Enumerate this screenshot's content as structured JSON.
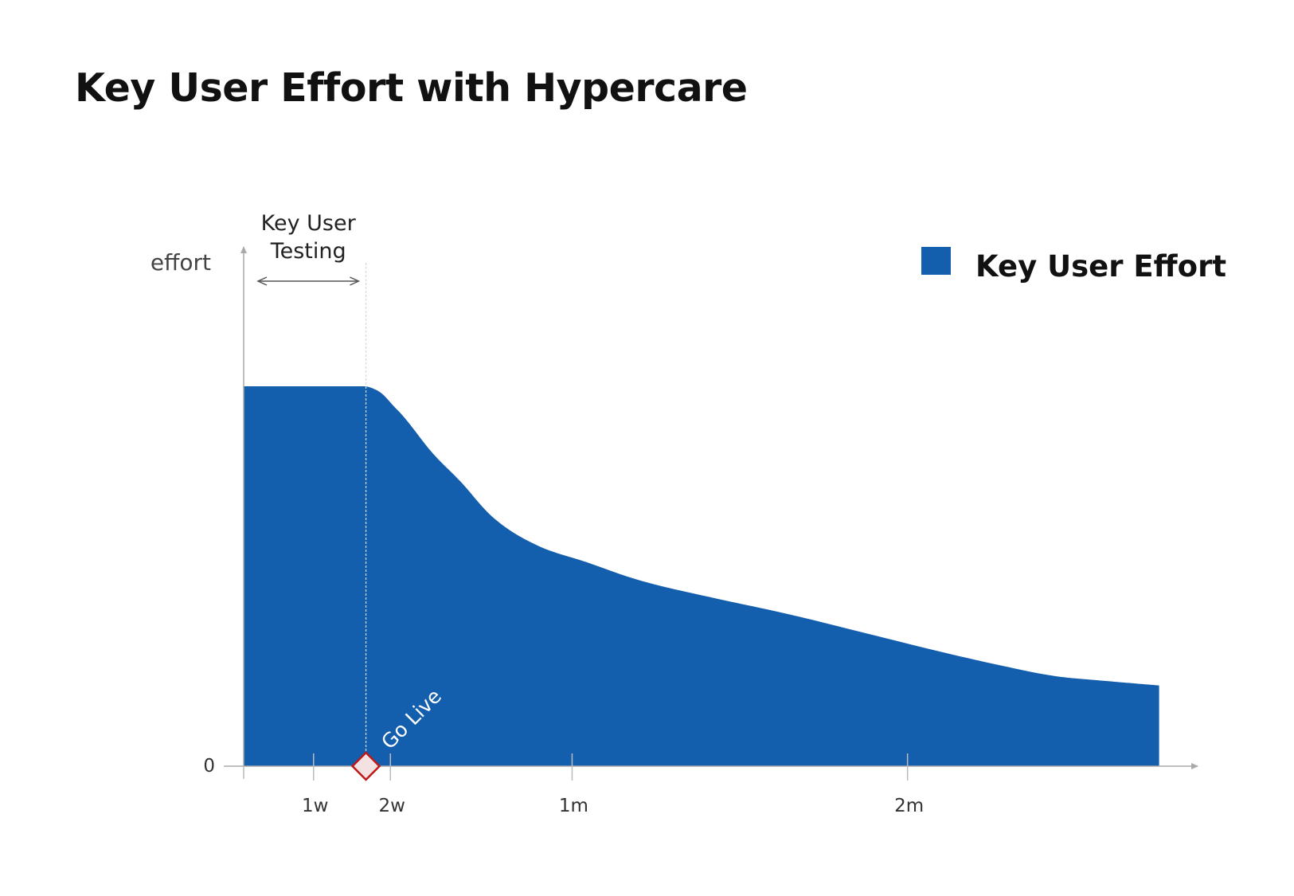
{
  "chart_data": {
    "type": "area",
    "title": "Key User Effort with Hypercare",
    "ylabel": "effort",
    "xlabel": "",
    "x_unit": "weeks",
    "xlim": [
      -0.05,
      13.1
    ],
    "ylim": [
      0,
      1
    ],
    "y_ticks": [
      {
        "value": 0,
        "label": "0"
      }
    ],
    "x_ticks": [
      {
        "value": 1,
        "label": "1w"
      },
      {
        "value": 2.1,
        "label": "2w"
      },
      {
        "value": 4.7,
        "label": "1m"
      },
      {
        "value": 9.5,
        "label": "2m"
      }
    ],
    "grid": false,
    "legend_position": "top-right",
    "series": [
      {
        "name": "Key User Effort",
        "color": "#135fae",
        "x": [
          0,
          0.8,
          1.75,
          2.2,
          2.7,
          3.1,
          3.6,
          4.2,
          4.9,
          5.7,
          6.7,
          7.8,
          8.9,
          10.0,
          10.9,
          11.6,
          12.3,
          13.1
        ],
        "y": [
          0.8,
          0.8,
          0.8,
          0.75,
          0.66,
          0.6,
          0.52,
          0.465,
          0.43,
          0.39,
          0.355,
          0.32,
          0.28,
          0.24,
          0.21,
          0.19,
          0.18,
          0.17
        ]
      }
    ],
    "annotations": {
      "phase_label_line1": "Key User",
      "phase_label_line2": "Testing",
      "phase_start": 0,
      "phase_end": 1.6,
      "milestone_label": "Go Live",
      "milestone_x": 1.75
    }
  }
}
